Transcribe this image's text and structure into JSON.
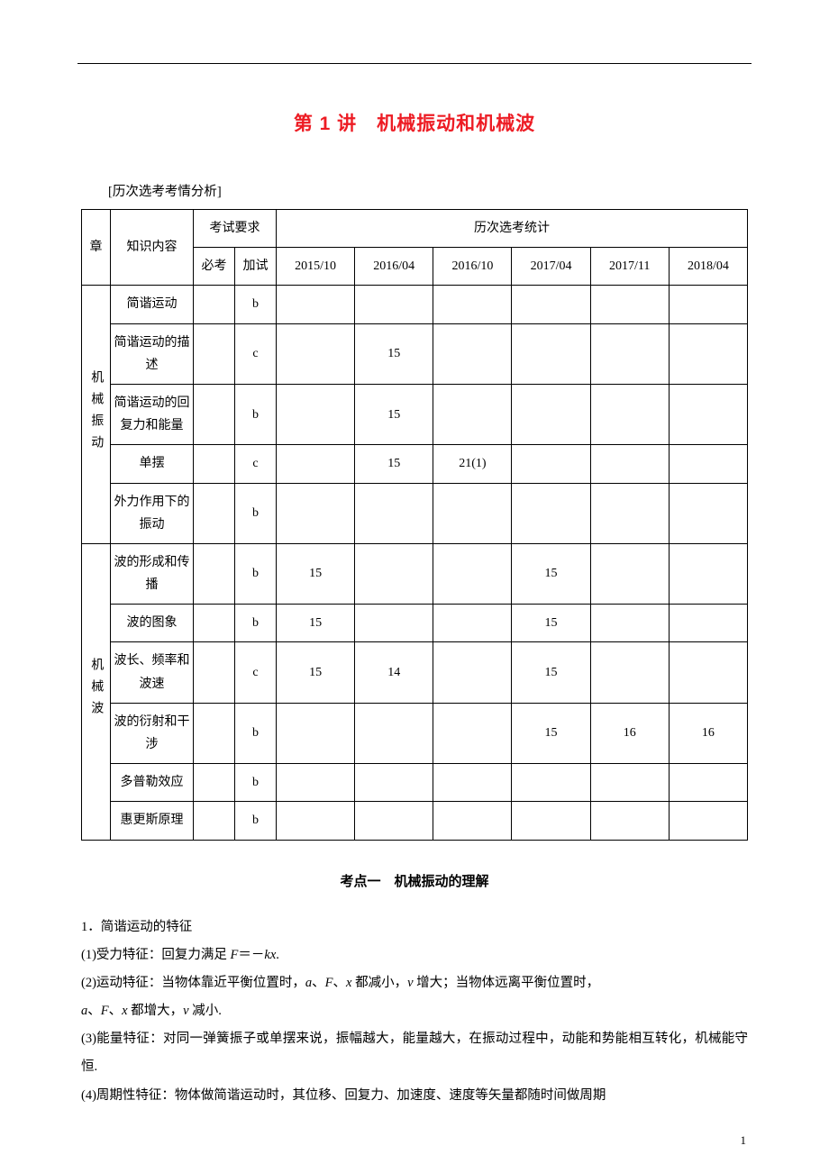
{
  "page": {
    "title": "第 1 讲　机械振动和机械波",
    "analysis_label": "[历次选考考情分析]",
    "page_number": "1"
  },
  "table": {
    "header": {
      "chapter": "章",
      "topic": "知识内容",
      "req": "考试要求",
      "req_must": "必考",
      "req_add": "加试",
      "history": "历次选考统计",
      "years": [
        "2015/10",
        "2016/04",
        "2016/10",
        "2017/04",
        "2017/11",
        "2018/04"
      ]
    },
    "chapter1": {
      "name": "机械振动",
      "rows": [
        {
          "topic": "简谐运动",
          "add": "b",
          "y": [
            "",
            "",
            "",
            "",
            "",
            ""
          ]
        },
        {
          "topic": "简谐运动的描述",
          "add": "c",
          "y": [
            "",
            "15",
            "",
            "",
            "",
            ""
          ]
        },
        {
          "topic": "简谐运动的回复力和能量",
          "add": "b",
          "y": [
            "",
            "15",
            "",
            "",
            "",
            ""
          ]
        },
        {
          "topic": "单摆",
          "add": "c",
          "y": [
            "",
            "15",
            "21(1)",
            "",
            "",
            ""
          ]
        },
        {
          "topic": "外力作用下的振动",
          "add": "b",
          "y": [
            "",
            "",
            "",
            "",
            "",
            ""
          ]
        }
      ]
    },
    "chapter2": {
      "name": "机械波",
      "rows": [
        {
          "topic": "波的形成和传播",
          "add": "b",
          "y": [
            "15",
            "",
            "",
            "15",
            "",
            ""
          ]
        },
        {
          "topic": "波的图象",
          "add": "b",
          "y": [
            "15",
            "",
            "",
            "15",
            "",
            ""
          ]
        },
        {
          "topic": "波长、频率和波速",
          "add": "c",
          "y": [
            "15",
            "14",
            "",
            "15",
            "",
            ""
          ]
        },
        {
          "topic": "波的衍射和干涉",
          "add": "b",
          "y": [
            "",
            "",
            "",
            "15",
            "16",
            "16"
          ]
        },
        {
          "topic": "多普勒效应",
          "add": "b",
          "y": [
            "",
            "",
            "",
            "",
            "",
            ""
          ]
        },
        {
          "topic": "惠更斯原理",
          "add": "b",
          "y": [
            "",
            "",
            "",
            "",
            "",
            ""
          ]
        }
      ]
    }
  },
  "section": {
    "subtitle": "考点一　机械振动的理解",
    "p_intro": "1．简谐运动的特征",
    "p1_a": "(1)受力特征：回复力满足 ",
    "p1_b": "F",
    "p1_c": "＝－",
    "p1_d": "kx",
    "p1_e": ".",
    "p2_a": "(2)运动特征：当物体靠近平衡位置时，",
    "p2_b": "a",
    "p2_c": "、",
    "p2_d": "F",
    "p2_e": "、",
    "p2_f": "x",
    "p2_g": " 都减小，",
    "p2_h": "v",
    "p2_i": " 增大；当物体远离平衡位置时，",
    "p3_a": "a",
    "p3_b": "、",
    "p3_c": "F",
    "p3_d": "、",
    "p3_e": "x",
    "p3_f": " 都增大，",
    "p3_g": "v",
    "p3_h": " 减小.",
    "p4": "(3)能量特征：对同一弹簧振子或单摆来说，振幅越大，能量越大，在振动过程中，动能和势能相互转化，机械能守恒.",
    "p5": "(4)周期性特征：物体做简谐运动时，其位移、回复力、加速度、速度等矢量都随时间做周期"
  },
  "style": {
    "title_color": "#ed1c24",
    "border_color": "#000000",
    "bg_color": "#ffffff",
    "font_body_pt": 14.5,
    "font_title_pt": 21,
    "line_height": 2.15
  }
}
